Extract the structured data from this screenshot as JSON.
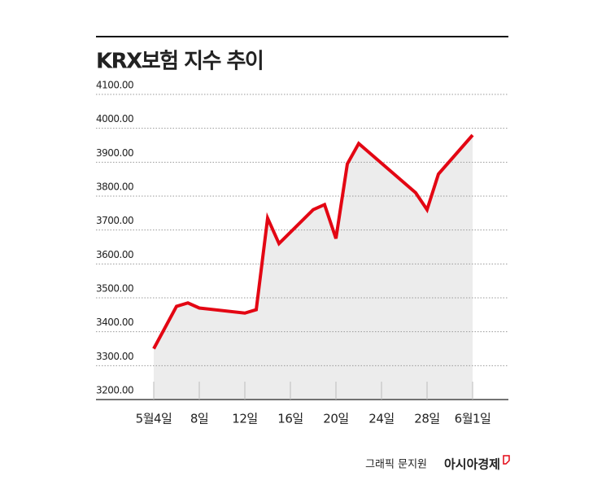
{
  "chart_data": {
    "type": "line",
    "title": "KRX보험 지수 추이",
    "x": [
      "05-04",
      "05-06",
      "05-07",
      "05-08",
      "05-12",
      "05-13",
      "05-14",
      "05-15",
      "05-18",
      "05-19",
      "05-20",
      "05-21",
      "05-22",
      "05-27",
      "05-28",
      "05-29",
      "06-01"
    ],
    "series": [
      {
        "name": "KRX보험",
        "color": "#e30613",
        "values": [
          3350,
          3475,
          3485,
          3470,
          3455,
          3465,
          3735,
          3660,
          3760,
          3775,
          3675,
          3895,
          3955,
          3810,
          3760,
          3865,
          3980
        ]
      }
    ],
    "area_color": "#ececec",
    "xlim": [
      "05-04",
      "06-01"
    ],
    "xticks": [
      {
        "value": "05-04",
        "label": "5월4일"
      },
      {
        "value": "05-08",
        "label": "8일"
      },
      {
        "value": "05-12",
        "label": "12일"
      },
      {
        "value": "05-16",
        "label": "16일"
      },
      {
        "value": "05-20",
        "label": "20일"
      },
      {
        "value": "05-24",
        "label": "24일"
      },
      {
        "value": "05-28",
        "label": "28일"
      },
      {
        "value": "06-01",
        "label": "6월1일"
      }
    ],
    "ylim": [
      3200,
      4100
    ],
    "yticks": [
      {
        "value": 3200,
        "label": "3200.00"
      },
      {
        "value": 3300,
        "label": "3300.00"
      },
      {
        "value": 3400,
        "label": "3400.00"
      },
      {
        "value": 3500,
        "label": "3500.00"
      },
      {
        "value": 3600,
        "label": "3600.00"
      },
      {
        "value": 3700,
        "label": "3700.00"
      },
      {
        "value": 3800,
        "label": "3800.00"
      },
      {
        "value": 3900,
        "label": "3900.00"
      },
      {
        "value": 4000,
        "label": "4000.00"
      },
      {
        "value": 4100,
        "label": "4100.00"
      }
    ],
    "grid": true,
    "credit": "그래픽 문지원",
    "source": "아시아경제"
  }
}
